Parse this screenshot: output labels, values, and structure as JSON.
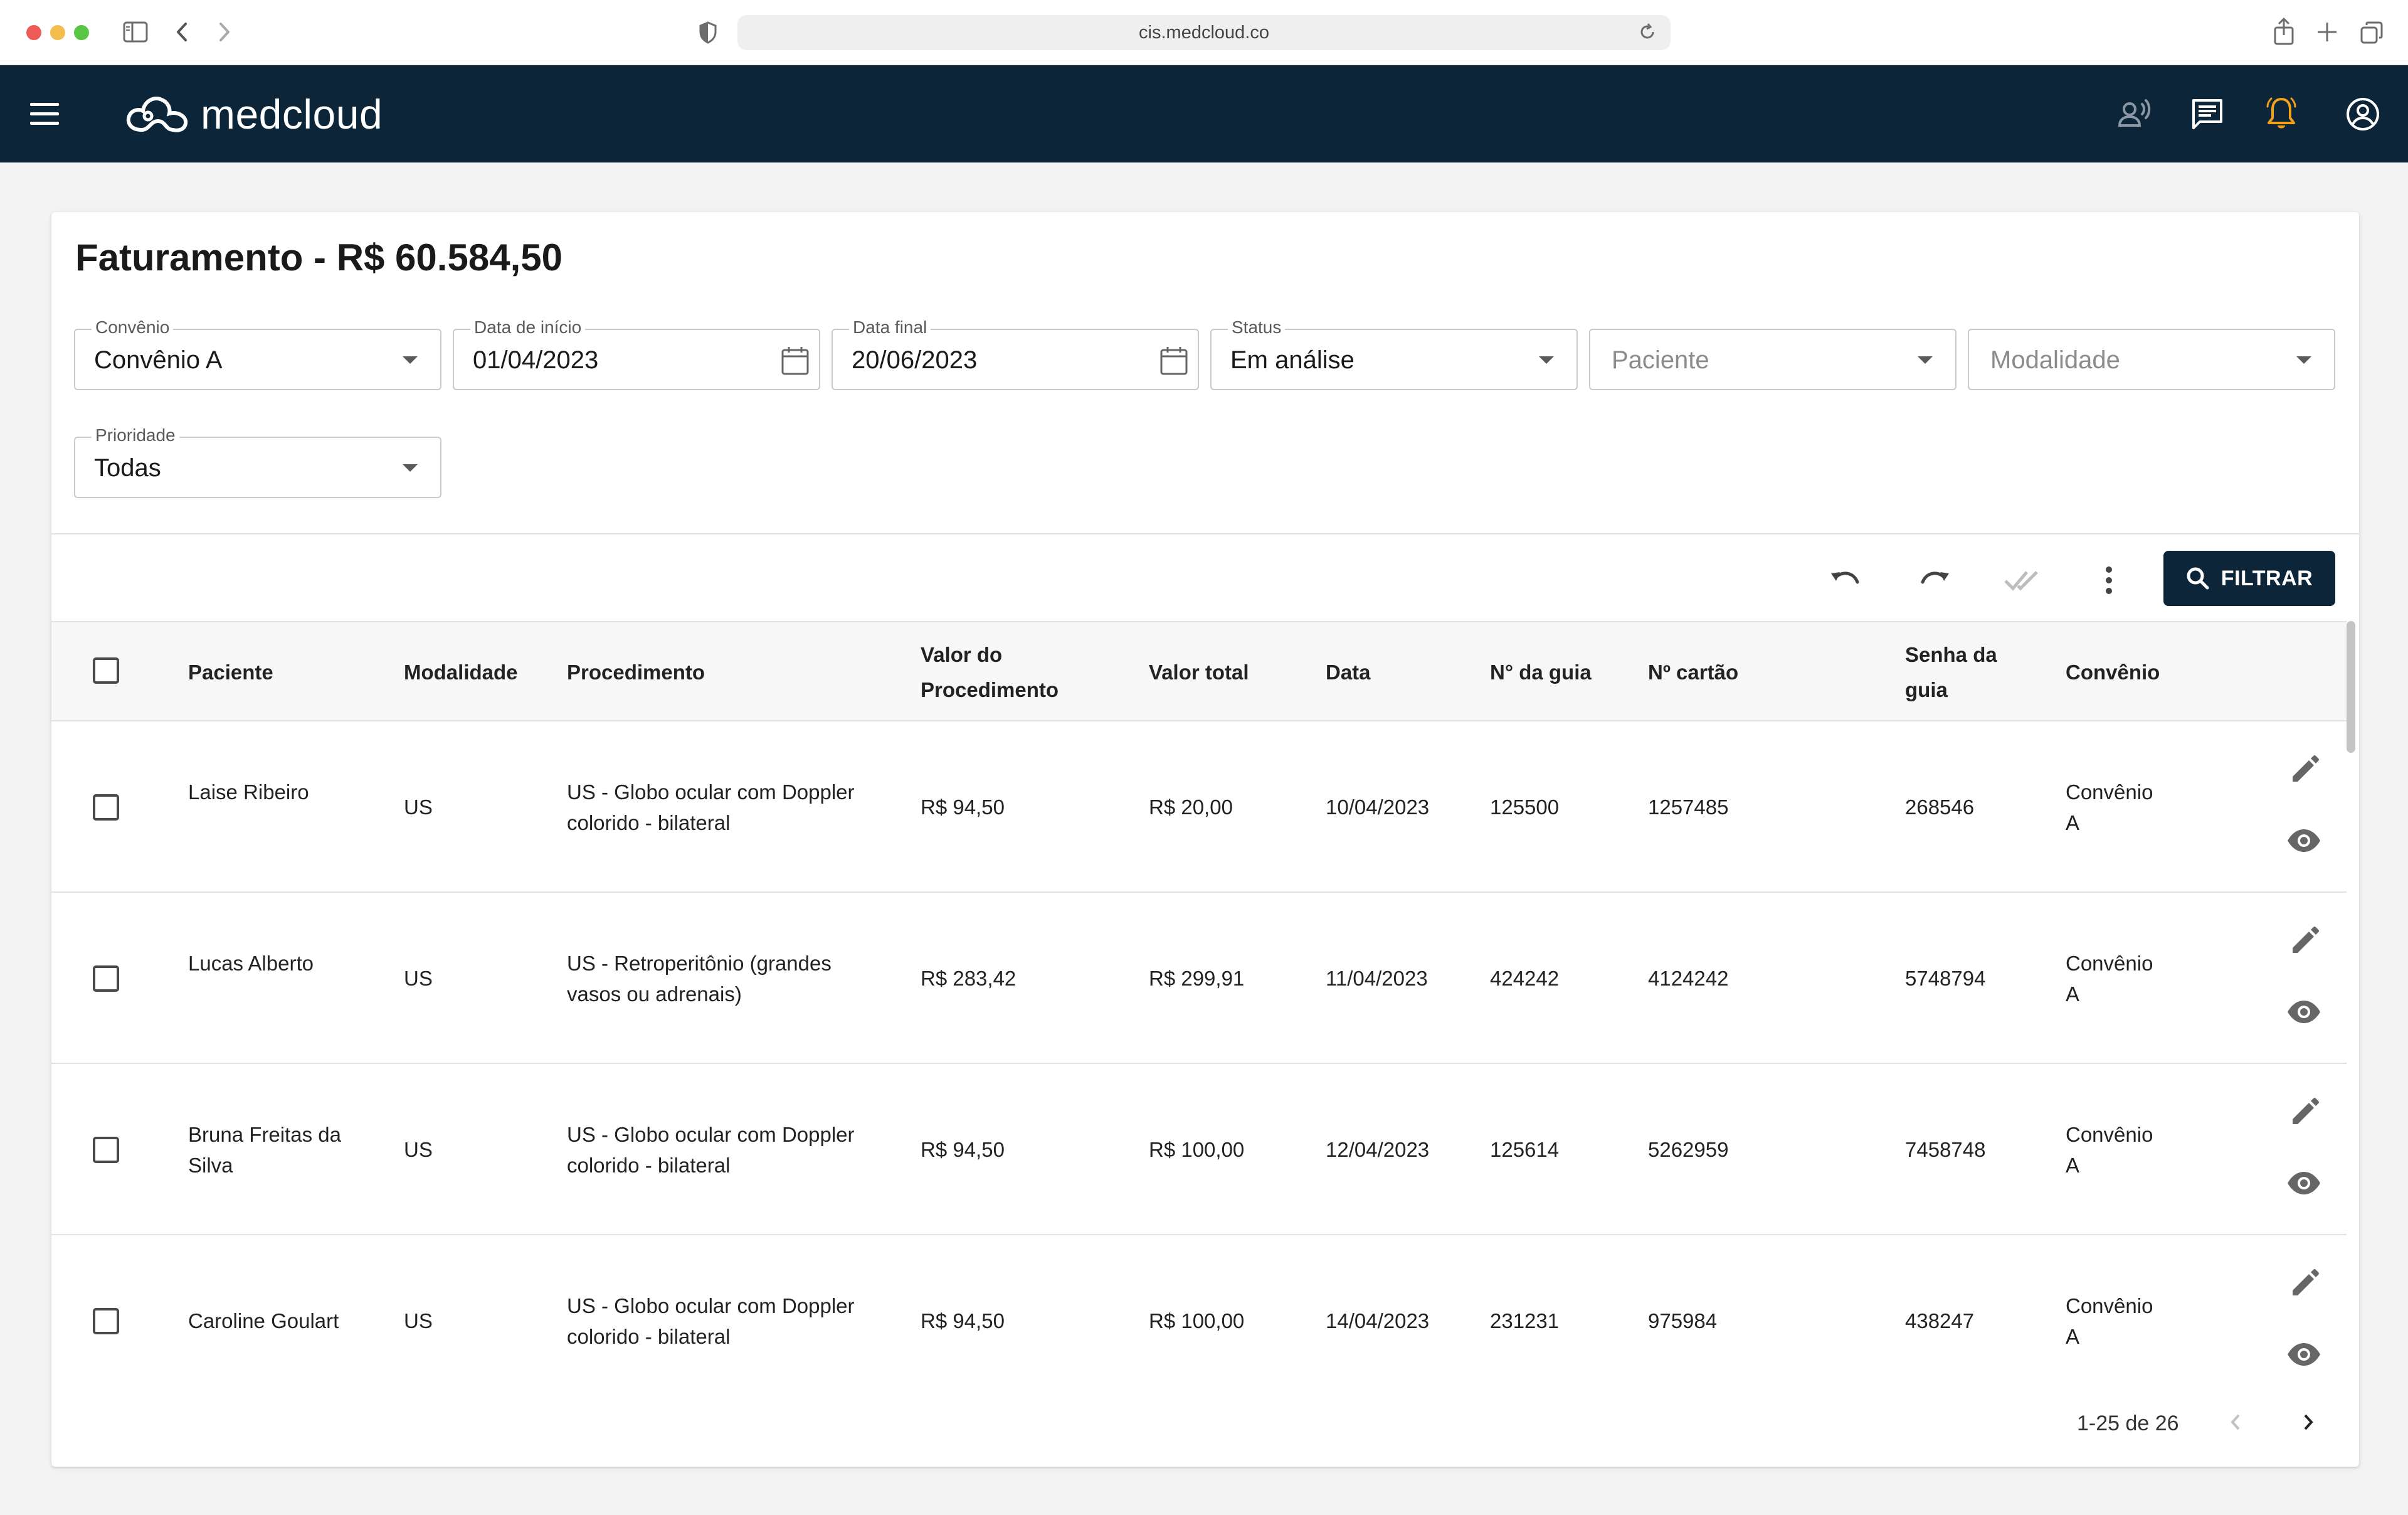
{
  "browser": {
    "url": "cis.medcloud.co"
  },
  "app": {
    "logo_text": "medcloud",
    "icons": [
      "menu-icon",
      "voice-assistant-icon",
      "chat-icon",
      "notification-bell-icon",
      "account-icon"
    ],
    "colors": {
      "header": "#0d2538",
      "accent_bell": "#f3a21c",
      "page_bg": "#f2f3f2"
    }
  },
  "page": {
    "title": "Faturamento - R$ 60.584,50"
  },
  "filters": {
    "convenio": {
      "label": "Convênio",
      "value": "Convênio A"
    },
    "data_inicio": {
      "label": "Data de início",
      "value": "01/04/2023"
    },
    "data_final": {
      "label": "Data final",
      "value": "20/06/2023"
    },
    "status": {
      "label": "Status",
      "value": "Em análise"
    },
    "paciente": {
      "placeholder": "Paciente"
    },
    "modalidade": {
      "placeholder": "Modalidade"
    },
    "prioridade": {
      "label": "Prioridade",
      "value": "Todas"
    }
  },
  "toolbar": {
    "filter_label": "FILTRAR"
  },
  "table": {
    "headers": {
      "paciente": "Paciente",
      "modalidade": "Modalidade",
      "procedimento": "Procedimento",
      "valor_procedimento_1": "Valor do",
      "valor_procedimento_2": "Procedimento",
      "valor_total": "Valor total",
      "data": "Data",
      "guia": "N° da guia",
      "cartao": "Nº cartão",
      "senha_1": "Senha da",
      "senha_2": "guia",
      "convenio": "Convênio"
    },
    "rows": [
      {
        "paciente_1": "Laise Ribeiro",
        "paciente_2": "",
        "modalidade": "US",
        "proc_1": "US - Globo ocular com Doppler",
        "proc_2": "colorido - bilateral",
        "valor": "R$ 94,50",
        "total": "R$ 20,00",
        "data": "10/04/2023",
        "guia": "125500",
        "cartao": "1257485",
        "senha": "268546",
        "conv_1": "Convênio",
        "conv_2": "A"
      },
      {
        "paciente_1": "Lucas Alberto",
        "paciente_2": "",
        "modalidade": "US",
        "proc_1": "US - Retroperitônio (grandes",
        "proc_2": "vasos ou adrenais)",
        "valor": "R$ 283,42",
        "total": "R$ 299,91",
        "data": "11/04/2023",
        "guia": "424242",
        "cartao": "4124242",
        "senha": "5748794",
        "conv_1": "Convênio",
        "conv_2": "A"
      },
      {
        "paciente_1": "Bruna Freitas da",
        "paciente_2": "Silva",
        "modalidade": "US",
        "proc_1": "US - Globo ocular com Doppler",
        "proc_2": "colorido - bilateral",
        "valor": "R$ 94,50",
        "total": "R$ 100,00",
        "data": "12/04/2023",
        "guia": "125614",
        "cartao": "5262959",
        "senha": "7458748",
        "conv_1": "Convênio",
        "conv_2": "A"
      },
      {
        "paciente_1": "Caroline Goulart",
        "paciente_2": "",
        "modalidade": "US",
        "proc_1": "US - Globo ocular com Doppler",
        "proc_2": "colorido - bilateral",
        "valor": "R$ 94,50",
        "total": "R$ 100,00",
        "data": "14/04/2023",
        "guia": "231231",
        "cartao": "975984",
        "senha": "438247",
        "conv_1": "Convênio",
        "conv_2": "A"
      }
    ]
  },
  "pagination": {
    "text": "1-25 de 26"
  }
}
